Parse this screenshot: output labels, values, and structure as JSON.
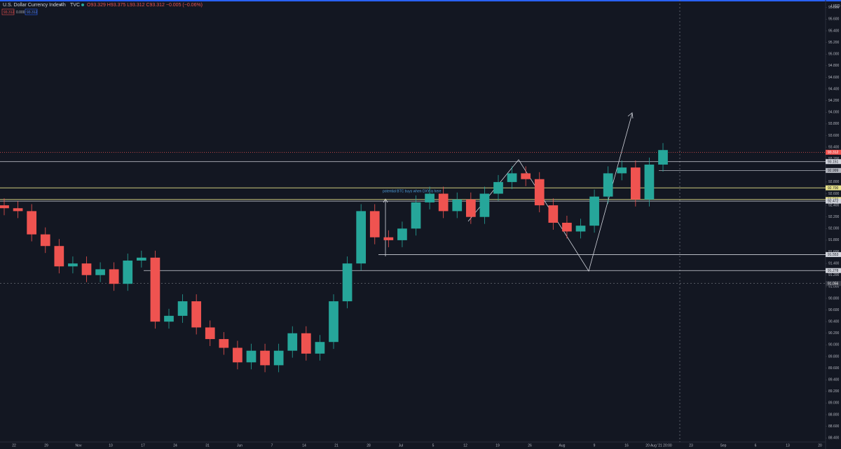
{
  "chart_data": {
    "type": "candlestick",
    "title": "U.S. Dollar Currency Index",
    "interval": "4h",
    "exchange": "TVC",
    "ohlc_text": "O93.329 H93.375 L93.312 C93.312 −0.005 (−0.06%)",
    "badges": [
      "93.312",
      "0.000",
      "93.312"
    ],
    "currency": "USD",
    "annotation": "potential BTC buys when DXY is here",
    "up_color": "#26a69a",
    "down_color": "#ef5350",
    "open": [
      92.4,
      92.35,
      92.3,
      91.9,
      91.7,
      91.35,
      91.4,
      91.2,
      91.3,
      91.05,
      91.45,
      91.5,
      90.4,
      90.5,
      90.75,
      90.3,
      90.1,
      89.95,
      89.7,
      89.9,
      89.65,
      89.9,
      90.2,
      89.85,
      90.05,
      90.75,
      91.4,
      92.3,
      91.85,
      91.8,
      92.0,
      92.45,
      92.6,
      92.3,
      92.5,
      92.2,
      92.6,
      92.8,
      92.95,
      92.85,
      92.4,
      92.1,
      91.95,
      92.05,
      92.55,
      92.95,
      93.05,
      92.5,
      93.1
    ],
    "high": [
      92.52,
      92.47,
      92.42,
      92.02,
      91.82,
      91.52,
      91.52,
      91.42,
      91.42,
      91.57,
      91.62,
      91.62,
      90.62,
      90.87,
      90.87,
      90.42,
      90.22,
      90.07,
      90.02,
      90.02,
      90.02,
      90.32,
      90.32,
      90.17,
      90.87,
      91.52,
      92.42,
      92.42,
      91.97,
      92.12,
      92.57,
      92.72,
      92.72,
      92.62,
      92.62,
      92.72,
      92.92,
      93.07,
      93.07,
      92.97,
      92.52,
      92.22,
      92.17,
      92.67,
      93.07,
      93.17,
      93.17,
      93.22,
      93.47
    ],
    "low": [
      92.23,
      92.18,
      91.78,
      91.58,
      91.23,
      91.23,
      91.08,
      91.08,
      90.93,
      90.93,
      91.33,
      90.28,
      90.28,
      90.38,
      90.18,
      89.98,
      89.83,
      89.58,
      89.58,
      89.53,
      89.53,
      89.78,
      89.73,
      89.73,
      89.93,
      90.63,
      91.28,
      91.73,
      91.68,
      91.68,
      91.88,
      92.33,
      92.18,
      92.18,
      92.08,
      92.08,
      92.48,
      92.68,
      92.73,
      92.28,
      91.98,
      91.83,
      91.83,
      91.93,
      92.43,
      92.83,
      92.38,
      92.38,
      92.98
    ],
    "close": [
      92.35,
      92.3,
      91.9,
      91.7,
      91.35,
      91.4,
      91.2,
      91.3,
      91.05,
      91.45,
      91.5,
      90.4,
      90.5,
      90.75,
      90.3,
      90.1,
      89.95,
      89.7,
      89.9,
      89.65,
      89.9,
      90.2,
      89.85,
      90.05,
      90.75,
      91.4,
      92.3,
      91.85,
      91.8,
      92.0,
      92.45,
      92.6,
      92.3,
      92.5,
      92.2,
      92.6,
      92.8,
      92.95,
      92.85,
      92.4,
      92.1,
      91.95,
      92.05,
      92.55,
      92.95,
      93.05,
      92.5,
      93.1,
      93.35
    ],
    "x_labels": [
      "22",
      "29",
      "Nov",
      "10",
      "17",
      "24",
      "31",
      "Jun",
      "7",
      "14",
      "21",
      "28",
      "Jul",
      "5",
      "12",
      "19",
      "26",
      "Aug",
      "9",
      "16",
      "20 Aug '21 20:00",
      "23",
      "Sep",
      "6",
      "13",
      "20"
    ],
    "levels": [
      {
        "value": 93.151,
        "label": "93.151",
        "color": "#d1d4dc"
      },
      {
        "value": 92.999,
        "label": "92.999",
        "color": "#b2b5be"
      },
      {
        "value": 92.7,
        "label": "92.700",
        "color": "#e8e28a"
      },
      {
        "value": 92.5,
        "label": "92.500",
        "color": "#e8e28a"
      },
      {
        "value": 92.472,
        "label": "92.472",
        "color": "#d1d4dc"
      },
      {
        "value": 91.553,
        "label": "91.553",
        "color": "#d1d4dc"
      },
      {
        "value": 91.278,
        "label": "91.278",
        "color": "#d1d4dc"
      }
    ],
    "last_price": {
      "value": 93.312,
      "label": "93.312",
      "color": "#ef5350"
    },
    "crosshair": {
      "value": 91.056,
      "label": "91.056",
      "color": "#787b86"
    },
    "ylim": [
      88.21,
      95.93
    ],
    "yticks": [
      {
        "value": 88.4,
        "label": "88.400"
      },
      {
        "value": 88.6,
        "label": "88.600"
      },
      {
        "value": 88.8,
        "label": "88.800"
      },
      {
        "value": 89,
        "label": "89.000"
      },
      {
        "value": 89.2,
        "label": "89.200"
      },
      {
        "value": 89.4,
        "label": "89.400"
      },
      {
        "value": 89.6,
        "label": "89.600"
      },
      {
        "value": 89.8,
        "label": "89.800"
      },
      {
        "value": 90,
        "label": "90.000"
      },
      {
        "value": 90.2,
        "label": "90.200"
      },
      {
        "value": 90.4,
        "label": "90.400"
      },
      {
        "value": 90.6,
        "label": "90.600"
      },
      {
        "value": 90.8,
        "label": "90.800"
      },
      {
        "value": 91,
        "label": "91.000"
      },
      {
        "value": 91.2,
        "label": "91.200"
      },
      {
        "value": 91.4,
        "label": "91.400"
      },
      {
        "value": 91.6,
        "label": "91.600"
      },
      {
        "value": 91.8,
        "label": "91.800"
      },
      {
        "value": 92,
        "label": "92.000"
      },
      {
        "value": 92.2,
        "label": "92.200"
      },
      {
        "value": 92.4,
        "label": "92.400"
      },
      {
        "value": 92.6,
        "label": "92.600"
      },
      {
        "value": 92.8,
        "label": "92.800"
      },
      {
        "value": 93,
        "label": "93.000"
      },
      {
        "value": 93.2,
        "label": "93.200"
      },
      {
        "value": 93.4,
        "label": "93.400"
      },
      {
        "value": 93.6,
        "label": "93.600"
      },
      {
        "value": 93.8,
        "label": "93.800"
      },
      {
        "value": 94,
        "label": "94.000"
      },
      {
        "value": 94.2,
        "label": "94.200"
      },
      {
        "value": 94.4,
        "label": "94.400"
      },
      {
        "value": 94.6,
        "label": "94.600"
      },
      {
        "value": 94.8,
        "label": "94.800"
      },
      {
        "value": 95,
        "label": "95.000"
      },
      {
        "value": 95.2,
        "label": "95.200"
      },
      {
        "value": 95.4,
        "label": "95.400"
      },
      {
        "value": 95.6,
        "label": "95.600"
      },
      {
        "value": 95.8,
        "label": "95.800"
      }
    ]
  }
}
